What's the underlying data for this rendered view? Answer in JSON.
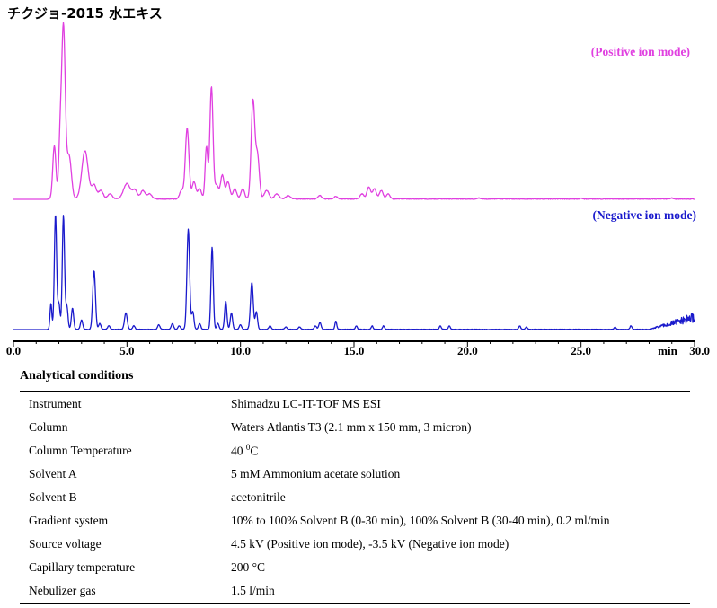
{
  "title": "チクジョ-2015 水エキス",
  "chart_data": {
    "type": "line",
    "xlabel": "min",
    "xlim": [
      0,
      30
    ],
    "xticks": [
      "0.0",
      "5.0",
      "10.0",
      "15.0",
      "20.0",
      "25.0",
      "30.0"
    ],
    "grid": false,
    "series": [
      {
        "name": "(Positive ion mode)",
        "color": "#e040e0",
        "peaks": [
          [
            1.8,
            0.31,
            0.07
          ],
          [
            2.05,
            0.3,
            0.06
          ],
          [
            2.2,
            1.0,
            0.08
          ],
          [
            2.45,
            0.25,
            0.1
          ],
          [
            3.15,
            0.28,
            0.14
          ],
          [
            3.55,
            0.08,
            0.1
          ],
          [
            3.85,
            0.05,
            0.1
          ],
          [
            4.25,
            0.03,
            0.1
          ],
          [
            5.0,
            0.09,
            0.15
          ],
          [
            5.35,
            0.05,
            0.1
          ],
          [
            5.7,
            0.05,
            0.1
          ],
          [
            6.0,
            0.03,
            0.1
          ],
          [
            7.4,
            0.05,
            0.08
          ],
          [
            7.65,
            0.41,
            0.08
          ],
          [
            7.95,
            0.1,
            0.08
          ],
          [
            8.2,
            0.06,
            0.08
          ],
          [
            8.5,
            0.3,
            0.06
          ],
          [
            8.72,
            0.65,
            0.07
          ],
          [
            8.95,
            0.08,
            0.08
          ],
          [
            9.2,
            0.14,
            0.08
          ],
          [
            9.45,
            0.1,
            0.08
          ],
          [
            9.75,
            0.06,
            0.08
          ],
          [
            10.1,
            0.06,
            0.08
          ],
          [
            10.55,
            0.57,
            0.08
          ],
          [
            10.75,
            0.25,
            0.08
          ],
          [
            11.15,
            0.05,
            0.1
          ],
          [
            11.6,
            0.03,
            0.1
          ],
          [
            12.1,
            0.02,
            0.1
          ],
          [
            13.5,
            0.02,
            0.08
          ],
          [
            14.2,
            0.015,
            0.08
          ],
          [
            15.35,
            0.03,
            0.08
          ],
          [
            15.65,
            0.07,
            0.08
          ],
          [
            15.9,
            0.06,
            0.08
          ],
          [
            16.2,
            0.05,
            0.08
          ],
          [
            16.5,
            0.03,
            0.08
          ],
          [
            20.5,
            0.006,
            0.05
          ],
          [
            25.0,
            0.005,
            0.05
          ],
          [
            29.0,
            0.006,
            0.05
          ]
        ]
      },
      {
        "name": "(Negative ion mode)",
        "color": "#1a1acc",
        "peaks": [
          [
            1.65,
            0.22,
            0.04
          ],
          [
            1.85,
            0.98,
            0.05
          ],
          [
            2.0,
            0.22,
            0.05
          ],
          [
            2.2,
            0.97,
            0.05
          ],
          [
            2.35,
            0.2,
            0.05
          ],
          [
            2.6,
            0.18,
            0.05
          ],
          [
            3.0,
            0.08,
            0.05
          ],
          [
            3.55,
            0.5,
            0.06
          ],
          [
            3.8,
            0.05,
            0.05
          ],
          [
            4.2,
            0.03,
            0.05
          ],
          [
            4.95,
            0.14,
            0.06
          ],
          [
            5.3,
            0.03,
            0.05
          ],
          [
            6.4,
            0.04,
            0.05
          ],
          [
            7.0,
            0.05,
            0.05
          ],
          [
            7.3,
            0.03,
            0.05
          ],
          [
            7.7,
            0.85,
            0.06
          ],
          [
            7.9,
            0.15,
            0.05
          ],
          [
            8.2,
            0.05,
            0.05
          ],
          [
            8.75,
            0.7,
            0.05
          ],
          [
            9.0,
            0.05,
            0.05
          ],
          [
            9.35,
            0.24,
            0.05
          ],
          [
            9.6,
            0.14,
            0.05
          ],
          [
            10.0,
            0.04,
            0.05
          ],
          [
            10.5,
            0.4,
            0.06
          ],
          [
            10.7,
            0.15,
            0.05
          ],
          [
            11.3,
            0.03,
            0.05
          ],
          [
            12.0,
            0.02,
            0.05
          ],
          [
            12.6,
            0.02,
            0.05
          ],
          [
            13.3,
            0.03,
            0.05
          ],
          [
            13.5,
            0.06,
            0.05
          ],
          [
            14.2,
            0.07,
            0.04
          ],
          [
            15.1,
            0.03,
            0.04
          ],
          [
            15.8,
            0.03,
            0.04
          ],
          [
            16.3,
            0.03,
            0.04
          ],
          [
            18.8,
            0.03,
            0.04
          ],
          [
            19.2,
            0.03,
            0.04
          ],
          [
            22.3,
            0.03,
            0.04
          ],
          [
            22.6,
            0.02,
            0.04
          ],
          [
            26.5,
            0.02,
            0.04
          ],
          [
            27.2,
            0.03,
            0.04
          ]
        ],
        "baseline_rise": {
          "from_min": 28.0,
          "to_min": 30.0,
          "level": 0.1
        }
      }
    ]
  },
  "conditions": {
    "heading": "Analytical conditions",
    "rows": [
      {
        "label": "Instrument",
        "value": "Shimadzu LC-IT-TOF MS ESI"
      },
      {
        "label": "Column",
        "value": "Waters Atlantis T3 (2.1 mm x 150 mm, 3 micron)"
      },
      {
        "label": "Column Temperature",
        "value_pre": "40 ",
        "value_sup": "0",
        "value_post": "C"
      },
      {
        "label": "Solvent A",
        "value": "5 mM Ammonium acetate solution"
      },
      {
        "label": "Solvent B",
        "value": "acetonitrile"
      },
      {
        "label": "Gradient system",
        "value": "10% to 100% Solvent B (0-30 min), 100% Solvent B (30-40 min), 0.2 ml/min"
      },
      {
        "label": "Source voltage",
        "value": "4.5 kV (Positive ion mode), -3.5 kV (Negative ion mode)"
      },
      {
        "label": "Capillary temperature",
        "value": "200 °C"
      },
      {
        "label": "Nebulizer gas",
        "value": "1.5 l/min"
      }
    ]
  }
}
